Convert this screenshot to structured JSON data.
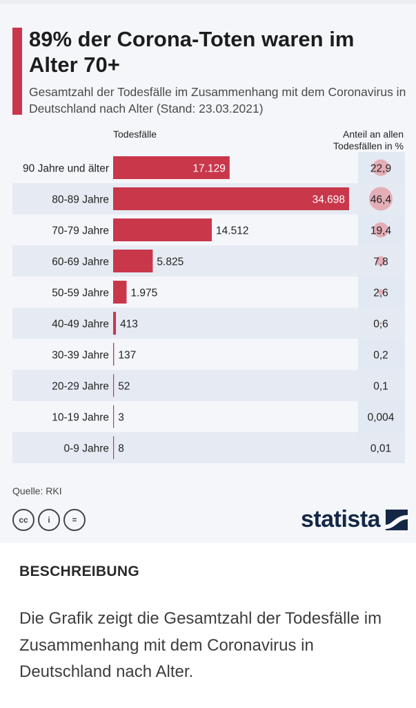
{
  "header": {
    "title": "89% der Corona-Toten waren im Alter 70+",
    "subtitle": "Gesamtzahl der Todesfälle im Zusammenhang mit dem Coronavirus in Deutschland nach Alter (Stand: 23.03.2021)"
  },
  "columns": {
    "left": "Todesfälle",
    "right": "Anteil an allen Todesfällen in %"
  },
  "chart_data": {
    "type": "bar",
    "orientation": "horizontal",
    "categories": [
      "90 Jahre und älter",
      "80-89 Jahre",
      "70-79 Jahre",
      "60-69 Jahre",
      "50-59 Jahre",
      "40-49 Jahre",
      "30-39 Jahre",
      "20-29 Jahre",
      "10-19 Jahre",
      "0-9 Jahre"
    ],
    "values": [
      17129,
      34698,
      14512,
      5825,
      1975,
      413,
      137,
      52,
      3,
      8
    ],
    "value_labels": [
      "17.129",
      "34.698",
      "14.512",
      "5.825",
      "1.975",
      "413",
      "137",
      "52",
      "3",
      "8"
    ],
    "shares": [
      22.9,
      46.4,
      19.4,
      7.8,
      2.6,
      0.6,
      0.2,
      0.1,
      0.004,
      0.01
    ],
    "share_labels": [
      "22,9",
      "46,4",
      "19,4",
      "7,8",
      "2,6",
      "0,6",
      "0,2",
      "0,1",
      "0,004",
      "0,01"
    ],
    "grid": false,
    "colors": {
      "bar": "#c9374b",
      "bubble": "#e4a3ad",
      "row_alt": "#e6ebf3",
      "share_column": "#e3e9f2"
    }
  },
  "footer": {
    "source": "Quelle: RKI",
    "cc_icons": [
      "creative-commons-icon",
      "attribution-icon",
      "no-derivatives-icon"
    ],
    "cc_glyphs": [
      "cc",
      "i",
      "="
    ],
    "logo_text": "statista"
  },
  "description": {
    "heading": "BESCHREIBUNG",
    "text": "Die Grafik zeigt die Gesamtzahl der Todesfälle im Zusammenhang mit dem Coronavirus in Deutschland nach Alter."
  }
}
